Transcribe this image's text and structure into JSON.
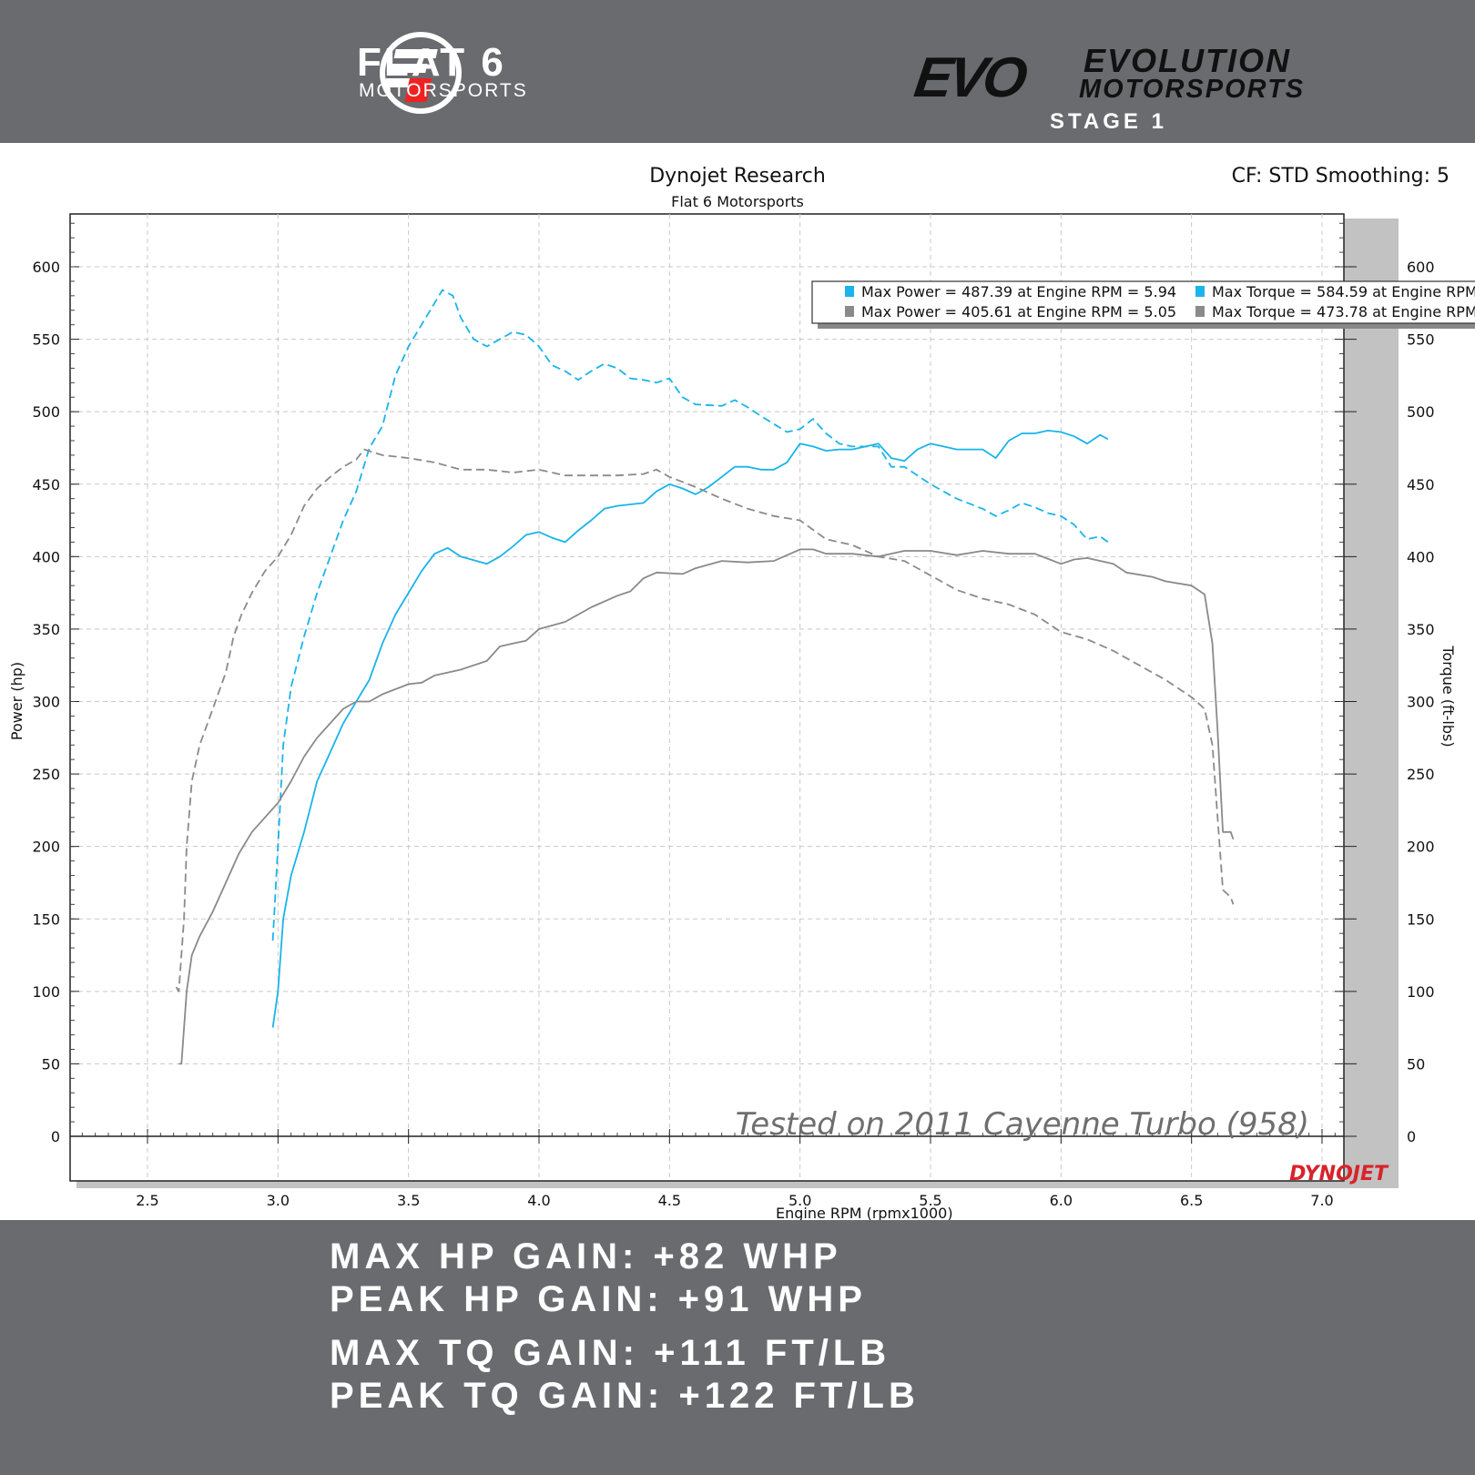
{
  "header": {
    "left_logo_title": "FLAT 6",
    "left_logo_subtitle": "MOTORSPORTS",
    "right_logo_mark": "EVO",
    "right_logo_title": "EVOLUTION",
    "right_logo_subtitle": "MOTORSPORTS",
    "stage": "STAGE 1"
  },
  "chart_data": {
    "type": "line",
    "title": "Dynojet Research",
    "subtitle": "Flat 6 Motorsports",
    "corner_info": "CF: STD Smoothing: 5",
    "xlabel": "Engine RPM (rpmx1000)",
    "ylabel": "Power (hp)",
    "y2label": "Torque (ft-lbs)",
    "xlim": [
      2.2,
      7.08
    ],
    "ylim": [
      0,
      636
    ],
    "x_ticks": [
      2.5,
      3.0,
      3.5,
      4.0,
      4.5,
      5.0,
      5.5,
      6.0,
      6.5,
      7.0
    ],
    "x_tick_labels": [
      "2.5",
      "3.0",
      "3.5",
      "4.0",
      "4.5",
      "5.0",
      "5.5",
      "6.0",
      "6.5",
      "7.0"
    ],
    "y_ticks": [
      0,
      50,
      100,
      150,
      200,
      250,
      300,
      350,
      400,
      450,
      500,
      550,
      600
    ],
    "grid": true,
    "legend_placement": "top-right",
    "legend": [
      "Max Power = 487.39 at Engine RPM = 5.94",
      "Max Torque = 584.59 at Engine RPM",
      "Max Power = 405.61 at Engine RPM = 5.05",
      "Max Torque = 473.78 at Engine RPM"
    ],
    "annotation": "Tested on 2011 Cayenne Turbo (958)",
    "watermark": "DYNOJET",
    "colors": {
      "tuned": "#19b4ea",
      "stock": "#8a8a8a"
    },
    "series": [
      {
        "name": "Tuned Power",
        "color": "#19b4ea",
        "dashed": false,
        "x": [
          2.98,
          3.0,
          3.02,
          3.05,
          3.1,
          3.15,
          3.2,
          3.25,
          3.3,
          3.35,
          3.4,
          3.45,
          3.5,
          3.55,
          3.6,
          3.65,
          3.7,
          3.8,
          3.85,
          3.9,
          3.95,
          4.0,
          4.05,
          4.1,
          4.15,
          4.2,
          4.25,
          4.3,
          4.4,
          4.45,
          4.5,
          4.55,
          4.6,
          4.65,
          4.7,
          4.75,
          4.8,
          4.85,
          4.9,
          4.95,
          5.0,
          5.05,
          5.1,
          5.15,
          5.2,
          5.3,
          5.35,
          5.4,
          5.45,
          5.5,
          5.55,
          5.6,
          5.7,
          5.75,
          5.8,
          5.85,
          5.9,
          5.95,
          6.0,
          6.05,
          6.1,
          6.15,
          6.18
        ],
        "y": [
          75,
          100,
          150,
          180,
          210,
          245,
          265,
          285,
          300,
          315,
          340,
          360,
          375,
          390,
          402,
          406,
          400,
          395,
          400,
          407,
          415,
          417,
          413,
          410,
          418,
          425,
          433,
          435,
          437,
          445,
          450,
          447,
          443,
          448,
          455,
          462,
          462,
          460,
          460,
          465,
          478,
          476,
          473,
          474,
          474,
          478,
          468,
          466,
          474,
          478,
          476,
          474,
          474,
          468,
          480,
          485,
          485,
          487,
          486,
          483,
          478,
          484,
          481
        ]
      },
      {
        "name": "Tuned Torque",
        "color": "#19b4ea",
        "dashed": true,
        "x": [
          2.98,
          3.0,
          3.02,
          3.05,
          3.1,
          3.15,
          3.2,
          3.25,
          3.3,
          3.35,
          3.4,
          3.45,
          3.5,
          3.55,
          3.6,
          3.63,
          3.67,
          3.7,
          3.75,
          3.8,
          3.85,
          3.9,
          3.95,
          4.0,
          4.05,
          4.1,
          4.15,
          4.2,
          4.25,
          4.3,
          4.35,
          4.4,
          4.45,
          4.5,
          4.55,
          4.6,
          4.7,
          4.75,
          4.8,
          4.85,
          4.95,
          5.0,
          5.05,
          5.1,
          5.15,
          5.2,
          5.3,
          5.35,
          5.4,
          5.45,
          5.5,
          5.55,
          5.6,
          5.7,
          5.75,
          5.8,
          5.85,
          5.9,
          5.95,
          6.0,
          6.05,
          6.1,
          6.15,
          6.18
        ],
        "y": [
          135,
          200,
          270,
          310,
          345,
          375,
          400,
          425,
          445,
          475,
          490,
          525,
          545,
          560,
          575,
          584,
          580,
          565,
          550,
          545,
          550,
          555,
          553,
          545,
          532,
          528,
          522,
          528,
          533,
          530,
          523,
          522,
          520,
          523,
          510,
          505,
          504,
          508,
          503,
          497,
          486,
          488,
          495,
          485,
          478,
          476,
          476,
          462,
          462,
          456,
          450,
          445,
          440,
          433,
          428,
          432,
          437,
          434,
          430,
          428,
          422,
          412,
          414,
          410
        ]
      },
      {
        "name": "Stock Power",
        "color": "#8a8a8a",
        "dashed": false,
        "x": [
          2.62,
          2.63,
          2.65,
          2.67,
          2.7,
          2.75,
          2.8,
          2.85,
          2.9,
          2.95,
          3.0,
          3.05,
          3.1,
          3.15,
          3.2,
          3.25,
          3.3,
          3.35,
          3.4,
          3.5,
          3.55,
          3.6,
          3.7,
          3.8,
          3.85,
          3.9,
          3.95,
          4.0,
          4.1,
          4.2,
          4.3,
          4.35,
          4.4,
          4.45,
          4.55,
          4.6,
          4.7,
          4.8,
          4.9,
          5.0,
          5.05,
          5.1,
          5.2,
          5.3,
          5.4,
          5.5,
          5.6,
          5.7,
          5.8,
          5.9,
          6.0,
          6.05,
          6.1,
          6.2,
          6.25,
          6.35,
          6.4,
          6.5,
          6.55,
          6.58,
          6.6,
          6.62,
          6.65,
          6.66
        ],
        "y": [
          50,
          50,
          100,
          125,
          138,
          155,
          175,
          195,
          210,
          220,
          230,
          245,
          262,
          275,
          285,
          295,
          300,
          300,
          305,
          312,
          313,
          318,
          322,
          328,
          338,
          340,
          342,
          350,
          355,
          365,
          373,
          376,
          385,
          389,
          388,
          392,
          397,
          396,
          397,
          405,
          405,
          402,
          402,
          400,
          404,
          404,
          401,
          404,
          402,
          402,
          395,
          398,
          399,
          395,
          389,
          386,
          383,
          380,
          374,
          340,
          280,
          210,
          210,
          205
        ]
      },
      {
        "name": "Stock Torque",
        "color": "#8a8a8a",
        "dashed": true,
        "x": [
          2.61,
          2.62,
          2.64,
          2.65,
          2.67,
          2.7,
          2.75,
          2.8,
          2.83,
          2.86,
          2.9,
          2.95,
          3.0,
          3.05,
          3.1,
          3.15,
          3.2,
          3.25,
          3.3,
          3.33,
          3.4,
          3.5,
          3.6,
          3.7,
          3.8,
          3.9,
          4.0,
          4.1,
          4.2,
          4.3,
          4.4,
          4.45,
          4.5,
          4.6,
          4.7,
          4.8,
          4.9,
          5.0,
          5.1,
          5.2,
          5.3,
          5.4,
          5.5,
          5.6,
          5.7,
          5.8,
          5.9,
          6.0,
          6.1,
          6.2,
          6.3,
          6.4,
          6.5,
          6.55,
          6.58,
          6.6,
          6.62,
          6.65,
          6.66
        ],
        "y": [
          103,
          100,
          150,
          200,
          245,
          270,
          295,
          320,
          345,
          360,
          375,
          390,
          400,
          415,
          435,
          447,
          455,
          462,
          467,
          474,
          470,
          468,
          465,
          460,
          460,
          458,
          460,
          456,
          456,
          456,
          457,
          460,
          455,
          448,
          440,
          433,
          428,
          425,
          412,
          408,
          400,
          397,
          387,
          377,
          371,
          367,
          360,
          348,
          343,
          335,
          325,
          315,
          303,
          295,
          270,
          220,
          170,
          165,
          160
        ]
      }
    ]
  },
  "footer": {
    "lines": [
      "MAX HP GAIN: +82 WHP",
      "PEAK HP GAIN: +91 WHP",
      "MAX TQ GAIN: +111 FT/LB",
      "PEAK TQ GAIN: +122 FT/LB"
    ]
  }
}
